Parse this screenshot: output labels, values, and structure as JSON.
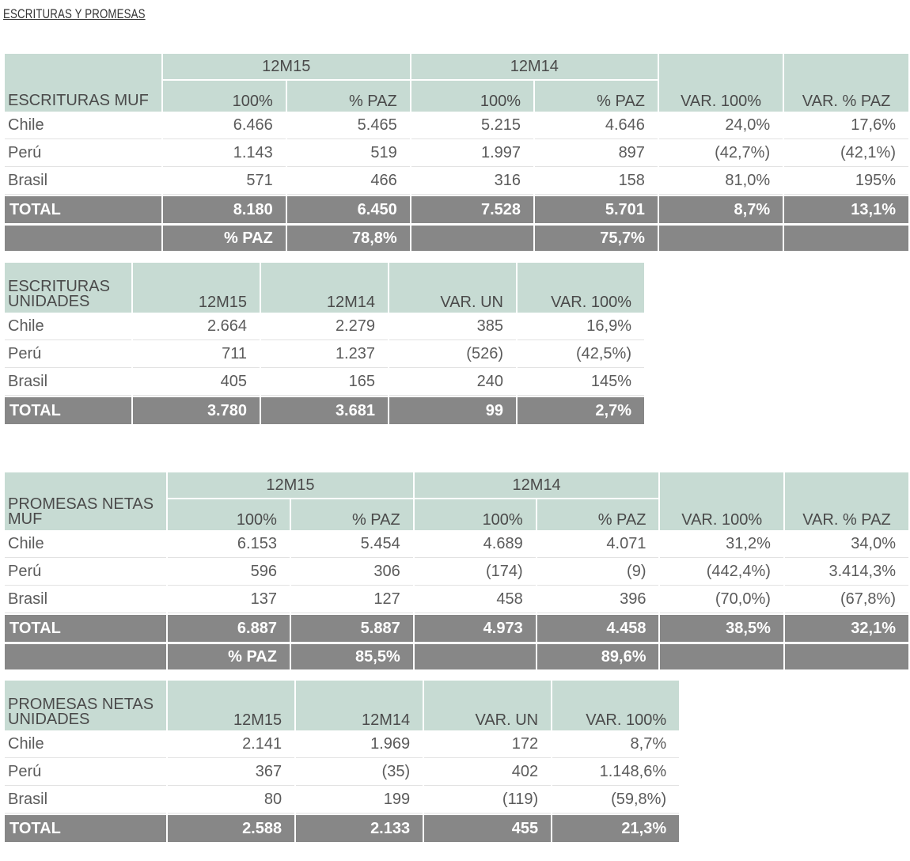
{
  "page_title": "ESCRITURAS Y PROMESAS",
  "escrituras_muf": {
    "label": "ESCRITURAS MUF",
    "group_12m15": "12M15",
    "group_12m14": "12M14",
    "cols": [
      "100%",
      "% PAZ",
      "100%",
      "% PAZ",
      "VAR. 100%",
      "VAR. % PAZ"
    ],
    "rows": [
      {
        "label": "Chile",
        "values": [
          "6.466",
          "5.465",
          "5.215",
          "4.646",
          "24,0%",
          "17,6%"
        ]
      },
      {
        "label": "Perú",
        "values": [
          "1.143",
          "519",
          "1.997",
          "897",
          "(42,7%)",
          "(42,1%)"
        ]
      },
      {
        "label": "Brasil",
        "values": [
          "571",
          "466",
          "316",
          "158",
          "81,0%",
          "195%"
        ]
      }
    ],
    "total": {
      "label": "TOTAL",
      "values": [
        "8.180",
        "6.450",
        "7.528",
        "5.701",
        "8,7%",
        "13,1%"
      ]
    },
    "paz": {
      "label_12m15": "% PAZ",
      "value_12m15": "78,8%",
      "value_12m14": "75,7%"
    }
  },
  "escrituras_unidades": {
    "label_line1": "ESCRITURAS",
    "label_line2": "UNIDADES",
    "cols": [
      "12M15",
      "12M14",
      "VAR. UN",
      "VAR. 100%"
    ],
    "rows": [
      {
        "label": "Chile",
        "values": [
          "2.664",
          "2.279",
          "385",
          "16,9%"
        ]
      },
      {
        "label": "Perú",
        "values": [
          "711",
          "1.237",
          "(526)",
          "(42,5%)"
        ]
      },
      {
        "label": "Brasil",
        "values": [
          "405",
          "165",
          "240",
          "145%"
        ]
      }
    ],
    "total": {
      "label": "TOTAL",
      "values": [
        "3.780",
        "3.681",
        "99",
        "2,7%"
      ]
    }
  },
  "promesas_muf": {
    "label_line1": "PROMESAS NETAS",
    "label_line2": "MUF",
    "group_12m15": "12M15",
    "group_12m14": "12M14",
    "cols": [
      "100%",
      "% PAZ",
      "100%",
      "% PAZ",
      "VAR. 100%",
      "VAR. % PAZ"
    ],
    "rows": [
      {
        "label": "Chile",
        "values": [
          "6.153",
          "5.454",
          "4.689",
          "4.071",
          "31,2%",
          "34,0%"
        ]
      },
      {
        "label": "Perú",
        "values": [
          "596",
          "306",
          "(174)",
          "(9)",
          "(442,4%)",
          "3.414,3%"
        ]
      },
      {
        "label": "Brasil",
        "values": [
          "137",
          "127",
          "458",
          "396",
          "(70,0%)",
          "(67,8%)"
        ]
      }
    ],
    "total": {
      "label": "TOTAL",
      "values": [
        "6.887",
        "5.887",
        "4.973",
        "4.458",
        "38,5%",
        "32,1%"
      ]
    },
    "paz": {
      "label_12m15": "% PAZ",
      "value_12m15": "85,5%",
      "value_12m14": "89,6%"
    }
  },
  "promesas_unidades": {
    "label_line1": "PROMESAS NETAS",
    "label_line2": "UNIDADES",
    "cols": [
      "12M15",
      "12M14",
      "VAR. UN",
      "VAR. 100%"
    ],
    "rows": [
      {
        "label": "Chile",
        "values": [
          "2.141",
          "1.969",
          "172",
          "8,7%"
        ]
      },
      {
        "label": "Perú",
        "values": [
          "367",
          "(35)",
          "402",
          "1.148,6%"
        ]
      },
      {
        "label": "Brasil",
        "values": [
          "80",
          "199",
          "(119)",
          "(59,8%)"
        ]
      }
    ],
    "total": {
      "label": "TOTAL",
      "values": [
        "2.588",
        "2.133",
        "455",
        "21,3%"
      ]
    }
  }
}
